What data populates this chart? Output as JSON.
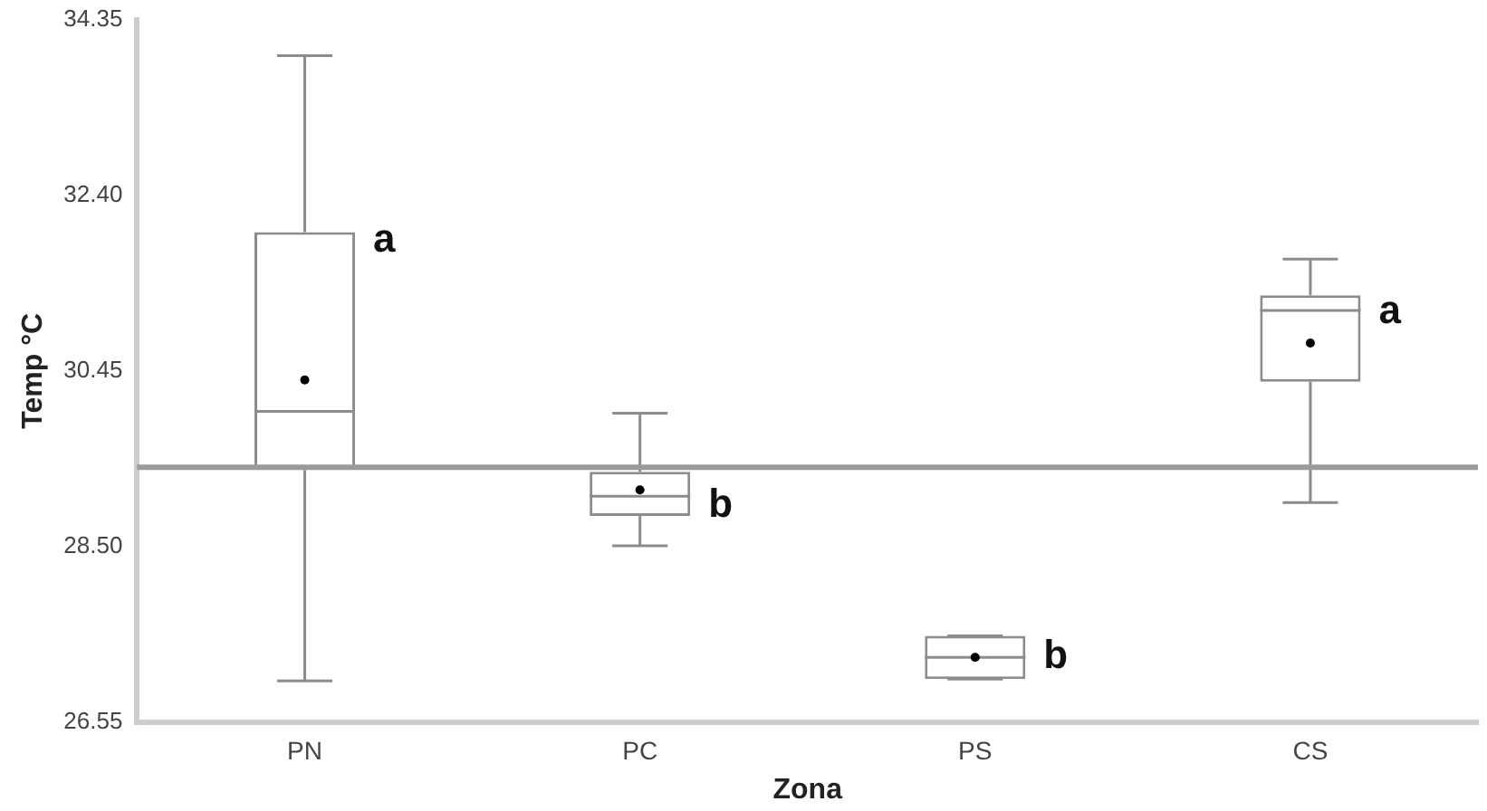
{
  "chart_data": {
    "type": "box",
    "xlabel": "Zona",
    "ylabel": "Temp °C",
    "categories": [
      "PN",
      "PC",
      "PS",
      "CS"
    ],
    "boxes": [
      {
        "low": 27.01,
        "q1": 29.35,
        "median": 30.0,
        "q3": 31.99,
        "high": 33.95,
        "mean": 30.35
      },
      {
        "low": 28.51,
        "q1": 28.84,
        "median": 29.06,
        "q3": 29.33,
        "high": 29.98,
        "mean": 29.13
      },
      {
        "low": 27.03,
        "q1": 27.03,
        "median": 27.27,
        "q3": 27.51,
        "high": 27.51,
        "mean": 27.27
      },
      {
        "low": 28.99,
        "q1": 30.33,
        "median": 31.12,
        "q3": 31.29,
        "high": 31.69,
        "mean": 30.76
      }
    ],
    "color": "#8c8c8c",
    "ylim": [
      26.55,
      34.35
    ],
    "yticks": [
      26.55,
      {
        "value": 28.5,
        "label": "28.50"
      },
      30.45,
      {
        "value": 32.4,
        "label": "32.40"
      },
      34.35
    ],
    "ref_lines": [
      {
        "axis": "y",
        "value": 29.38,
        "color": "#9a9a9a"
      }
    ],
    "annotations": [
      {
        "text": "a",
        "x": "PN",
        "y": 31.9
      },
      {
        "text": "b",
        "x": "PC",
        "y": 28.95
      },
      {
        "text": "b",
        "x": "PS",
        "y": 27.27
      },
      {
        "text": "a",
        "x": "CS",
        "y": 31.1
      }
    ],
    "grid": false,
    "legend": false
  }
}
